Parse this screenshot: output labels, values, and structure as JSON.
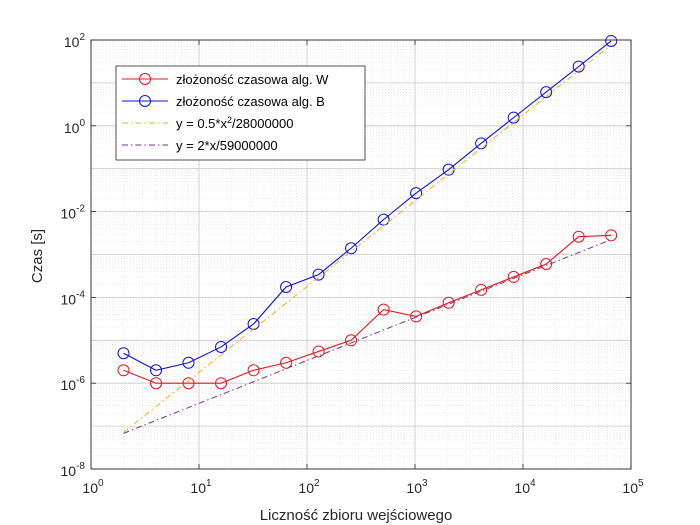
{
  "chart_data": {
    "type": "line",
    "xlabel": "Liczność zbioru wejściowego",
    "ylabel": "Czas [s]",
    "xscale": "log",
    "yscale": "log",
    "xlim": [
      1,
      100000
    ],
    "ylim": [
      1e-08,
      100
    ],
    "grid": true,
    "minor_grid": true,
    "legend_position": "top-left",
    "x_ticks": [
      {
        "value": 1,
        "base": "10",
        "exp": "0"
      },
      {
        "value": 10,
        "base": "10",
        "exp": "1"
      },
      {
        "value": 100,
        "base": "10",
        "exp": "2"
      },
      {
        "value": 1000,
        "base": "10",
        "exp": "3"
      },
      {
        "value": 10000,
        "base": "10",
        "exp": "4"
      },
      {
        "value": 100000,
        "base": "10",
        "exp": "5"
      }
    ],
    "y_ticks": [
      {
        "value": 1e-08,
        "base": "10",
        "exp": "-8"
      },
      {
        "value": 1e-06,
        "base": "10",
        "exp": "-6"
      },
      {
        "value": 0.0001,
        "base": "10",
        "exp": "-4"
      },
      {
        "value": 0.01,
        "base": "10",
        "exp": "-2"
      },
      {
        "value": 1,
        "base": "10",
        "exp": "0"
      },
      {
        "value": 100,
        "base": "10",
        "exp": "2"
      }
    ],
    "x": [
      2,
      4,
      8,
      16,
      32,
      64,
      128,
      256,
      512,
      1024,
      2048,
      4096,
      8192,
      16384,
      32768,
      65536
    ],
    "series": [
      {
        "name": "złożoność czasowa alg. W",
        "color": "#e8141b",
        "marker": "circle",
        "line_style": "solid",
        "values": [
          2e-06,
          1e-06,
          1e-06,
          1e-06,
          2e-06,
          3e-06,
          5.5e-06,
          1e-05,
          5.2e-05,
          3.6e-05,
          7.5e-05,
          0.00015,
          0.0003,
          0.0006,
          0.0026,
          0.0028
        ]
      },
      {
        "name": "złożoność czasowa alg. B",
        "color": "#1010e0",
        "marker": "circle",
        "line_style": "solid",
        "values": [
          5e-06,
          2e-06,
          3e-06,
          7e-06,
          2.4e-05,
          0.000175,
          0.00034,
          0.0014,
          0.0065,
          0.027,
          0.095,
          0.39,
          1.55,
          6.1,
          24,
          95
        ]
      },
      {
        "name": "y = 0.5*x²/28000000",
        "label_main": "y = 0.5*x",
        "label_exp": "2",
        "label_tail": "/28000000",
        "color": "#edb120",
        "marker": "none",
        "line_style": "dashdot",
        "values": [
          7.14e-08,
          2.86e-07,
          1.14e-06,
          4.57e-06,
          1.83e-05,
          7.31e-05,
          0.000293,
          0.00117,
          0.00468,
          0.0187,
          0.0749,
          0.3,
          1.2,
          4.79,
          19.2,
          76.7
        ]
      },
      {
        "name": "y = 2*x/59000000",
        "label_main": "y = 2*x/59000000",
        "color": "#7e2f8e",
        "marker": "none",
        "line_style": "dashdot",
        "values": [
          6.78e-08,
          1.36e-07,
          2.71e-07,
          5.42e-07,
          1.08e-06,
          2.17e-06,
          4.34e-06,
          8.68e-06,
          1.74e-05,
          3.47e-05,
          6.94e-05,
          0.000139,
          0.000278,
          0.000555,
          0.00111,
          0.00222
        ]
      }
    ]
  }
}
